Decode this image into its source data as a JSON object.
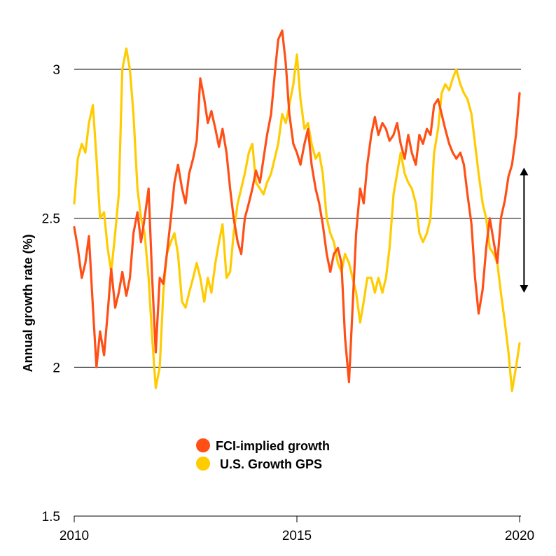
{
  "chart_data": {
    "type": "line",
    "ylabel": "Annual growth rate (%)",
    "xlabel": "",
    "xlim": [
      2010,
      2020
    ],
    "ylim": [
      1.5,
      3.2
    ],
    "x_ticks": [
      "2010",
      "2015",
      "2020"
    ],
    "x_tick_values": [
      2010,
      2015,
      2020
    ],
    "y_ticks": [
      "1.5",
      "2",
      "2.5",
      "3"
    ],
    "y_tick_values": [
      1.5,
      2,
      2.5,
      3
    ],
    "gridlines": [
      2,
      2.5,
      3
    ],
    "legend_position": "bottom-center",
    "annotation": {
      "type": "double-arrow",
      "x": 2020.1,
      "y_from": 2.67,
      "y_to": 2.25
    },
    "series": [
      {
        "name": "FCI-implied growth",
        "color": "#ff4f17",
        "points": [
          [
            2010.0,
            2.47
          ],
          [
            2010.08,
            2.4
          ],
          [
            2010.17,
            2.3
          ],
          [
            2010.25,
            2.35
          ],
          [
            2010.33,
            2.44
          ],
          [
            2010.42,
            2.2
          ],
          [
            2010.5,
            2.0
          ],
          [
            2010.58,
            2.12
          ],
          [
            2010.67,
            2.04
          ],
          [
            2010.75,
            2.18
          ],
          [
            2010.83,
            2.33
          ],
          [
            2010.92,
            2.2
          ],
          [
            2011.0,
            2.25
          ],
          [
            2011.08,
            2.32
          ],
          [
            2011.17,
            2.24
          ],
          [
            2011.25,
            2.3
          ],
          [
            2011.33,
            2.45
          ],
          [
            2011.42,
            2.52
          ],
          [
            2011.5,
            2.42
          ],
          [
            2011.58,
            2.5
          ],
          [
            2011.67,
            2.6
          ],
          [
            2011.75,
            2.3
          ],
          [
            2011.83,
            2.05
          ],
          [
            2011.92,
            2.3
          ],
          [
            2012.0,
            2.28
          ],
          [
            2012.08,
            2.38
          ],
          [
            2012.17,
            2.5
          ],
          [
            2012.25,
            2.62
          ],
          [
            2012.33,
            2.68
          ],
          [
            2012.42,
            2.6
          ],
          [
            2012.5,
            2.55
          ],
          [
            2012.58,
            2.65
          ],
          [
            2012.67,
            2.7
          ],
          [
            2012.75,
            2.76
          ],
          [
            2012.83,
            2.97
          ],
          [
            2012.92,
            2.9
          ],
          [
            2013.0,
            2.82
          ],
          [
            2013.08,
            2.86
          ],
          [
            2013.17,
            2.8
          ],
          [
            2013.25,
            2.74
          ],
          [
            2013.33,
            2.8
          ],
          [
            2013.42,
            2.72
          ],
          [
            2013.5,
            2.6
          ],
          [
            2013.58,
            2.5
          ],
          [
            2013.67,
            2.42
          ],
          [
            2013.75,
            2.38
          ],
          [
            2013.83,
            2.5
          ],
          [
            2013.92,
            2.55
          ],
          [
            2014.0,
            2.6
          ],
          [
            2014.08,
            2.66
          ],
          [
            2014.17,
            2.62
          ],
          [
            2014.25,
            2.7
          ],
          [
            2014.33,
            2.78
          ],
          [
            2014.42,
            2.85
          ],
          [
            2014.5,
            2.98
          ],
          [
            2014.58,
            3.1
          ],
          [
            2014.67,
            3.13
          ],
          [
            2014.75,
            3.02
          ],
          [
            2014.83,
            2.85
          ],
          [
            2014.92,
            2.75
          ],
          [
            2015.0,
            2.72
          ],
          [
            2015.08,
            2.68
          ],
          [
            2015.17,
            2.75
          ],
          [
            2015.25,
            2.8
          ],
          [
            2015.33,
            2.68
          ],
          [
            2015.42,
            2.6
          ],
          [
            2015.5,
            2.55
          ],
          [
            2015.58,
            2.48
          ],
          [
            2015.67,
            2.38
          ],
          [
            2015.75,
            2.32
          ],
          [
            2015.83,
            2.38
          ],
          [
            2015.92,
            2.4
          ],
          [
            2016.0,
            2.35
          ],
          [
            2016.08,
            2.1
          ],
          [
            2016.17,
            1.95
          ],
          [
            2016.25,
            2.2
          ],
          [
            2016.33,
            2.45
          ],
          [
            2016.42,
            2.6
          ],
          [
            2016.5,
            2.55
          ],
          [
            2016.58,
            2.68
          ],
          [
            2016.67,
            2.78
          ],
          [
            2016.75,
            2.84
          ],
          [
            2016.83,
            2.78
          ],
          [
            2016.92,
            2.82
          ],
          [
            2017.0,
            2.8
          ],
          [
            2017.08,
            2.76
          ],
          [
            2017.17,
            2.78
          ],
          [
            2017.25,
            2.82
          ],
          [
            2017.33,
            2.75
          ],
          [
            2017.42,
            2.7
          ],
          [
            2017.5,
            2.78
          ],
          [
            2017.58,
            2.72
          ],
          [
            2017.67,
            2.68
          ],
          [
            2017.75,
            2.78
          ],
          [
            2017.83,
            2.75
          ],
          [
            2017.92,
            2.8
          ],
          [
            2018.0,
            2.78
          ],
          [
            2018.08,
            2.88
          ],
          [
            2018.17,
            2.9
          ],
          [
            2018.25,
            2.85
          ],
          [
            2018.33,
            2.8
          ],
          [
            2018.42,
            2.75
          ],
          [
            2018.5,
            2.72
          ],
          [
            2018.58,
            2.7
          ],
          [
            2018.67,
            2.72
          ],
          [
            2018.75,
            2.68
          ],
          [
            2018.83,
            2.58
          ],
          [
            2018.92,
            2.48
          ],
          [
            2019.0,
            2.3
          ],
          [
            2019.08,
            2.18
          ],
          [
            2019.17,
            2.26
          ],
          [
            2019.25,
            2.4
          ],
          [
            2019.33,
            2.5
          ],
          [
            2019.42,
            2.42
          ],
          [
            2019.5,
            2.35
          ],
          [
            2019.58,
            2.5
          ],
          [
            2019.67,
            2.56
          ],
          [
            2019.75,
            2.64
          ],
          [
            2019.83,
            2.68
          ],
          [
            2019.92,
            2.78
          ],
          [
            2020.0,
            2.92
          ]
        ]
      },
      {
        "name": "U.S. Growth GPS",
        "color": "#ffcc00",
        "points": [
          [
            2010.0,
            2.55
          ],
          [
            2010.08,
            2.7
          ],
          [
            2010.17,
            2.75
          ],
          [
            2010.25,
            2.72
          ],
          [
            2010.33,
            2.82
          ],
          [
            2010.42,
            2.88
          ],
          [
            2010.5,
            2.7
          ],
          [
            2010.58,
            2.5
          ],
          [
            2010.67,
            2.52
          ],
          [
            2010.75,
            2.4
          ],
          [
            2010.83,
            2.32
          ],
          [
            2010.92,
            2.45
          ],
          [
            2011.0,
            2.58
          ],
          [
            2011.08,
            3.0
          ],
          [
            2011.17,
            3.07
          ],
          [
            2011.25,
            3.0
          ],
          [
            2011.33,
            2.85
          ],
          [
            2011.42,
            2.6
          ],
          [
            2011.5,
            2.5
          ],
          [
            2011.58,
            2.45
          ],
          [
            2011.67,
            2.3
          ],
          [
            2011.75,
            2.1
          ],
          [
            2011.83,
            1.93
          ],
          [
            2011.92,
            2.0
          ],
          [
            2012.0,
            2.25
          ],
          [
            2012.08,
            2.38
          ],
          [
            2012.17,
            2.42
          ],
          [
            2012.25,
            2.45
          ],
          [
            2012.33,
            2.38
          ],
          [
            2012.42,
            2.22
          ],
          [
            2012.5,
            2.2
          ],
          [
            2012.58,
            2.25
          ],
          [
            2012.67,
            2.3
          ],
          [
            2012.75,
            2.35
          ],
          [
            2012.83,
            2.3
          ],
          [
            2012.92,
            2.22
          ],
          [
            2013.0,
            2.3
          ],
          [
            2013.08,
            2.25
          ],
          [
            2013.17,
            2.35
          ],
          [
            2013.25,
            2.42
          ],
          [
            2013.33,
            2.48
          ],
          [
            2013.42,
            2.3
          ],
          [
            2013.5,
            2.32
          ],
          [
            2013.58,
            2.45
          ],
          [
            2013.67,
            2.55
          ],
          [
            2013.75,
            2.6
          ],
          [
            2013.83,
            2.65
          ],
          [
            2013.92,
            2.72
          ],
          [
            2014.0,
            2.75
          ],
          [
            2014.08,
            2.62
          ],
          [
            2014.17,
            2.6
          ],
          [
            2014.25,
            2.58
          ],
          [
            2014.33,
            2.62
          ],
          [
            2014.42,
            2.65
          ],
          [
            2014.5,
            2.7
          ],
          [
            2014.58,
            2.75
          ],
          [
            2014.67,
            2.85
          ],
          [
            2014.75,
            2.82
          ],
          [
            2014.83,
            2.88
          ],
          [
            2014.92,
            2.95
          ],
          [
            2015.0,
            3.05
          ],
          [
            2015.08,
            2.9
          ],
          [
            2015.17,
            2.8
          ],
          [
            2015.25,
            2.82
          ],
          [
            2015.33,
            2.75
          ],
          [
            2015.42,
            2.7
          ],
          [
            2015.5,
            2.72
          ],
          [
            2015.58,
            2.65
          ],
          [
            2015.67,
            2.5
          ],
          [
            2015.75,
            2.45
          ],
          [
            2015.83,
            2.42
          ],
          [
            2015.92,
            2.35
          ],
          [
            2016.0,
            2.32
          ],
          [
            2016.08,
            2.38
          ],
          [
            2016.17,
            2.35
          ],
          [
            2016.25,
            2.3
          ],
          [
            2016.33,
            2.25
          ],
          [
            2016.42,
            2.15
          ],
          [
            2016.5,
            2.22
          ],
          [
            2016.58,
            2.3
          ],
          [
            2016.67,
            2.3
          ],
          [
            2016.75,
            2.25
          ],
          [
            2016.83,
            2.3
          ],
          [
            2016.92,
            2.25
          ],
          [
            2017.0,
            2.3
          ],
          [
            2017.08,
            2.4
          ],
          [
            2017.17,
            2.58
          ],
          [
            2017.25,
            2.65
          ],
          [
            2017.33,
            2.72
          ],
          [
            2017.42,
            2.65
          ],
          [
            2017.5,
            2.62
          ],
          [
            2017.58,
            2.6
          ],
          [
            2017.67,
            2.55
          ],
          [
            2017.75,
            2.45
          ],
          [
            2017.83,
            2.42
          ],
          [
            2017.92,
            2.45
          ],
          [
            2018.0,
            2.5
          ],
          [
            2018.08,
            2.72
          ],
          [
            2018.17,
            2.8
          ],
          [
            2018.25,
            2.92
          ],
          [
            2018.33,
            2.95
          ],
          [
            2018.42,
            2.93
          ],
          [
            2018.5,
            2.97
          ],
          [
            2018.58,
            3.0
          ],
          [
            2018.67,
            2.95
          ],
          [
            2018.75,
            2.92
          ],
          [
            2018.83,
            2.9
          ],
          [
            2018.92,
            2.85
          ],
          [
            2019.0,
            2.75
          ],
          [
            2019.08,
            2.65
          ],
          [
            2019.17,
            2.55
          ],
          [
            2019.25,
            2.5
          ],
          [
            2019.33,
            2.4
          ],
          [
            2019.42,
            2.38
          ],
          [
            2019.5,
            2.35
          ],
          [
            2019.58,
            2.25
          ],
          [
            2019.67,
            2.15
          ],
          [
            2019.75,
            2.05
          ],
          [
            2019.83,
            1.92
          ],
          [
            2019.92,
            2.0
          ],
          [
            2020.0,
            2.08
          ]
        ]
      }
    ]
  }
}
